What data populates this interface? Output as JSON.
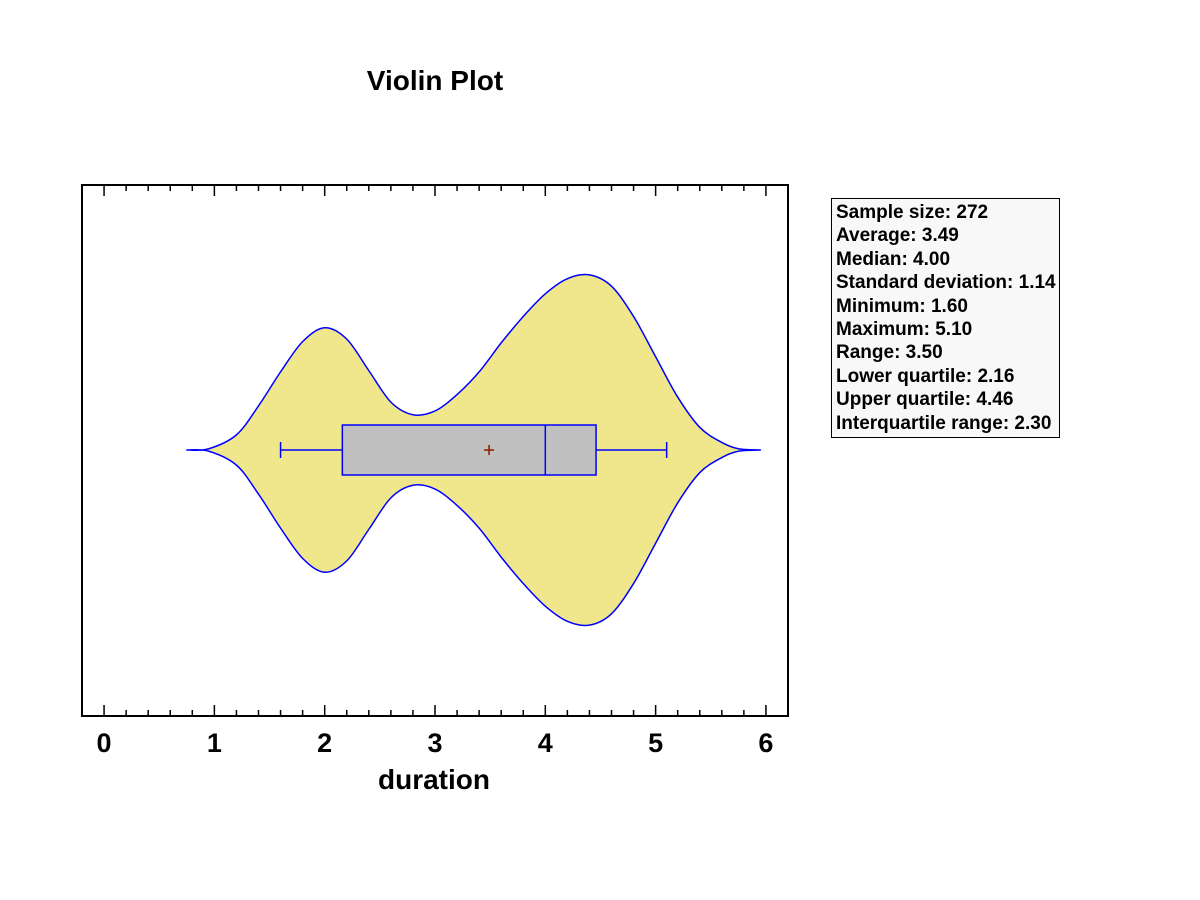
{
  "chart_data": {
    "type": "violin",
    "title": "Violin Plot",
    "xlabel": "duration",
    "ylabel": "",
    "xlim": [
      -0.2,
      6.2
    ],
    "x_ticks": [
      "0",
      "1",
      "2",
      "3",
      "4",
      "5",
      "6"
    ],
    "x_tick_values": [
      0,
      1,
      2,
      3,
      4,
      5,
      6
    ],
    "minor_tick_step": 0.2,
    "grid": false,
    "series": [
      {
        "name": "duration",
        "violin_extent": [
          0.75,
          5.95
        ],
        "density_profile": {
          "x": [
            0.75,
            0.95,
            1.2,
            1.4,
            1.6,
            1.8,
            2.0,
            2.2,
            2.4,
            2.6,
            2.8,
            3.0,
            3.2,
            3.4,
            3.6,
            3.8,
            4.0,
            4.2,
            4.4,
            4.6,
            4.8,
            5.0,
            5.2,
            5.4,
            5.6,
            5.75,
            5.95
          ],
          "half_width": [
            0.0,
            0.01,
            0.12,
            0.35,
            0.62,
            0.86,
            0.97,
            0.88,
            0.63,
            0.38,
            0.28,
            0.31,
            0.44,
            0.62,
            0.85,
            1.06,
            1.24,
            1.36,
            1.39,
            1.3,
            1.06,
            0.74,
            0.42,
            0.18,
            0.06,
            0.01,
            0.0
          ]
        },
        "box": {
          "whisker_low": 1.6,
          "q1": 2.16,
          "median": 4.0,
          "q3": 4.46,
          "whisker_high": 5.1,
          "mean": 3.49
        },
        "colors": {
          "violin_fill": "#f0e68c",
          "outline": "#0000ff",
          "box_fill": "#c0c0c0",
          "mean_marker": "#8b2500"
        }
      }
    ]
  },
  "stats": [
    "Sample size: 272",
    "Average: 3.49",
    "Median: 4.00",
    "Standard deviation: 1.14",
    "Minimum: 1.60",
    "Maximum: 5.10",
    "Range: 3.50",
    "Lower quartile: 2.16",
    "Upper quartile: 4.46",
    "Interquartile range: 2.30"
  ]
}
